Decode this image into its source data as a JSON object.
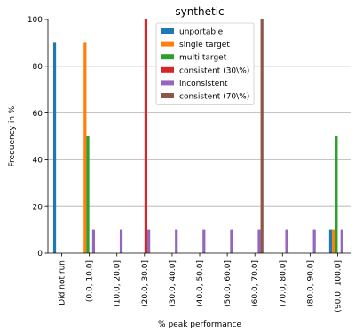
{
  "chart_data": {
    "type": "bar",
    "title": "synthetic",
    "xlabel": "% peak performance",
    "ylabel": "Frequency in %",
    "ylim": [
      0,
      100
    ],
    "yticks": [
      0,
      20,
      40,
      60,
      80,
      100
    ],
    "grid": "y",
    "legend_position": "top-center",
    "categories": [
      "Did not run",
      "(0.0, 10.0]",
      "(10.0, 20.0]",
      "(20.0, 30.0]",
      "(30.0, 40.0]",
      "(40.0, 50.0]",
      "(50.0, 60.0]",
      "(60.0, 70.0]",
      "(70.0, 80.0]",
      "(80.0, 90.0]",
      "(90.0, 100.0]"
    ],
    "series": [
      {
        "name": "unportable",
        "color": "#1f77b4",
        "values": [
          90,
          0,
          0,
          0,
          0,
          0,
          0,
          0,
          0,
          0,
          10
        ]
      },
      {
        "name": "single target",
        "color": "#ff7f0e",
        "values": [
          0,
          90,
          0,
          0,
          0,
          0,
          0,
          0,
          0,
          0,
          10
        ]
      },
      {
        "name": "multi target",
        "color": "#2ca02c",
        "values": [
          0,
          50,
          0,
          0,
          0,
          0,
          0,
          0,
          0,
          0,
          50
        ]
      },
      {
        "name": "consistent (30\\%)",
        "color": "#d62728",
        "values": [
          0,
          0,
          0,
          100,
          0,
          0,
          0,
          0,
          0,
          0,
          0
        ]
      },
      {
        "name": "inconsistent",
        "color": "#9467bd",
        "values": [
          0,
          10,
          10,
          10,
          10,
          10,
          10,
          10,
          10,
          10,
          10
        ]
      },
      {
        "name": "consistent (70\\%)",
        "color": "#8c564b",
        "values": [
          0,
          0,
          0,
          0,
          0,
          0,
          0,
          100,
          0,
          0,
          0
        ]
      }
    ]
  }
}
